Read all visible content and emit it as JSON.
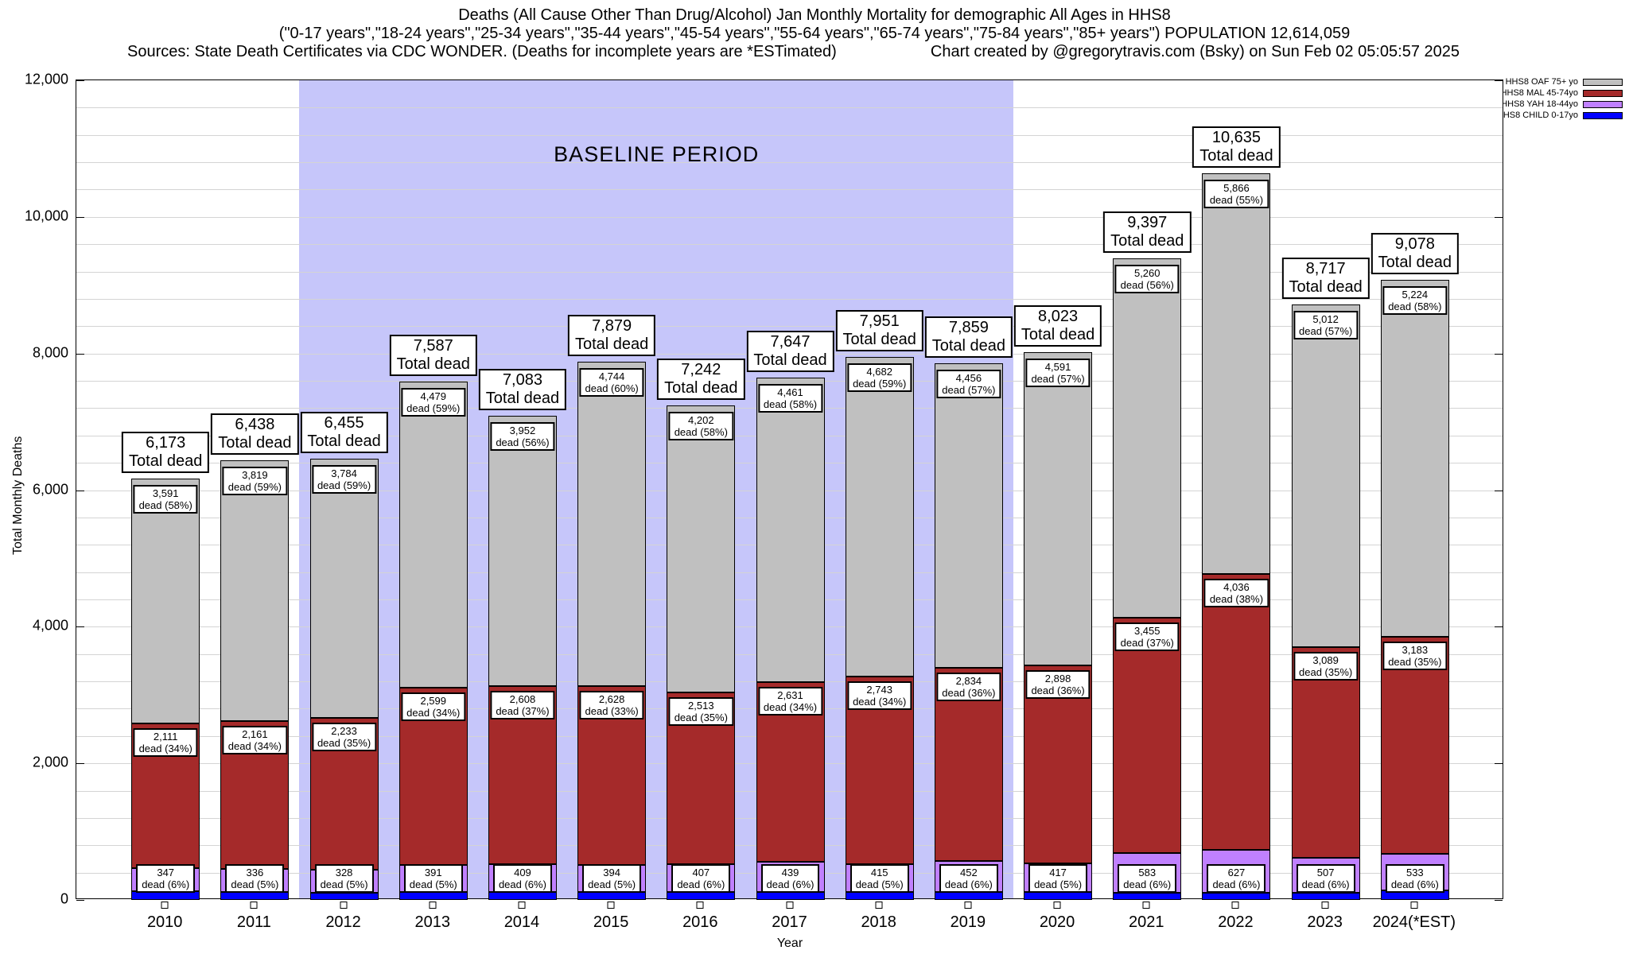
{
  "header": {
    "title_line1": "Deaths (All Cause Other Than Drug/Alcohol) Jan Monthly Mortality for demographic All Ages in HHS8",
    "title_line2": "(\"0-17 years\",\"18-24 years\",\"25-34 years\",\"35-44 years\",\"45-54 years\",\"55-64 years\",\"65-74 years\",\"75-84 years\",\"85+ years\") POPULATION 12,614,059",
    "title_line3_left": "Sources: State Death Certificates via CDC WONDER. (Deaths for incomplete years are *ESTimated)",
    "title_line3_right": "Chart created by @gregorytravis.com (Bsky) on Sun Feb 02 05:05:57 2025"
  },
  "chart_data": {
    "type": "bar",
    "stacked": true,
    "title": "Deaths (All Cause Other Than Drug/Alcohol) Jan Monthly Mortality for demographic All Ages in HHS8",
    "xlabel": "Year",
    "ylabel": "Total Monthly Deaths",
    "ylim": [
      0,
      12000
    ],
    "grid_interval": 400,
    "grid": true,
    "legend_position": "top-right-outside",
    "total_label_suffix": "Total dead",
    "baseline_period": {
      "label": "BASELINE PERIOD",
      "from": "2012",
      "to": "2019",
      "band_color": "#c6c6fa"
    },
    "yticks": [
      {
        "value": 0,
        "label": "0"
      },
      {
        "value": 2000,
        "label": "2,000"
      },
      {
        "value": 4000,
        "label": "4,000"
      },
      {
        "value": 6000,
        "label": "6,000"
      },
      {
        "value": 8000,
        "label": "8,000"
      },
      {
        "value": 10000,
        "label": "10,000"
      },
      {
        "value": 12000,
        "label": "12,000"
      }
    ],
    "categories": [
      "2010",
      "2011",
      "2012",
      "2013",
      "2014",
      "2015",
      "2016",
      "2017",
      "2018",
      "2019",
      "2020",
      "2021",
      "2022",
      "2023",
      "2024(*EST)"
    ],
    "series": [
      {
        "key": "oaf",
        "name": "HHS8 OAF 75+ yo",
        "color": "#c0c0c0"
      },
      {
        "key": "mal",
        "name": "HHS8 MAL 45-74yo",
        "color": "#a52a2a"
      },
      {
        "key": "yah",
        "name": "HHS8 YAH 18-44yo",
        "color": "#c080ff"
      },
      {
        "key": "child",
        "name": "HHS8 CHILD 0-17yo",
        "color": "#0000ff"
      }
    ],
    "stack_order_bottom_up": [
      "child",
      "yah",
      "mal",
      "oaf"
    ],
    "bars": [
      {
        "year": "2010",
        "total": 6173,
        "total_label": "6,173",
        "segments": {
          "oaf": {
            "v": 3591,
            "label": "3,591",
            "pct": "dead (58%)"
          },
          "mal": {
            "v": 2111,
            "label": "2,111",
            "pct": "dead (34%)"
          },
          "yah": {
            "v": 347,
            "label": "347",
            "pct": "dead (6%)"
          },
          "child": {
            "v": 124
          }
        }
      },
      {
        "year": "2011",
        "total": 6438,
        "total_label": "6,438",
        "segments": {
          "oaf": {
            "v": 3819,
            "label": "3,819",
            "pct": "dead (59%)"
          },
          "mal": {
            "v": 2161,
            "label": "2,161",
            "pct": "dead (34%)"
          },
          "yah": {
            "v": 336,
            "label": "336",
            "pct": "dead (5%)"
          },
          "child": {
            "v": 122
          }
        }
      },
      {
        "year": "2012",
        "total": 6455,
        "total_label": "6,455",
        "segments": {
          "oaf": {
            "v": 3784,
            "label": "3,784",
            "pct": "dead (59%)"
          },
          "mal": {
            "v": 2233,
            "label": "2,233",
            "pct": "dead (35%)"
          },
          "yah": {
            "v": 328,
            "label": "328",
            "pct": "dead (5%)"
          },
          "child": {
            "v": 110
          }
        }
      },
      {
        "year": "2013",
        "total": 7587,
        "total_label": "7,587",
        "segments": {
          "oaf": {
            "v": 4479,
            "label": "4,479",
            "pct": "dead (59%)"
          },
          "mal": {
            "v": 2599,
            "label": "2,599",
            "pct": "dead (34%)"
          },
          "yah": {
            "v": 391,
            "label": "391",
            "pct": "dead (5%)"
          },
          "child": {
            "v": 118
          }
        }
      },
      {
        "year": "2014",
        "total": 7083,
        "total_label": "7,083",
        "segments": {
          "oaf": {
            "v": 3952,
            "label": "3,952",
            "pct": "dead (56%)"
          },
          "mal": {
            "v": 2608,
            "label": "2,608",
            "pct": "dead (37%)"
          },
          "yah": {
            "v": 409,
            "label": "409",
            "pct": "dead (6%)"
          },
          "child": {
            "v": 114
          }
        }
      },
      {
        "year": "2015",
        "total": 7879,
        "total_label": "7,879",
        "segments": {
          "oaf": {
            "v": 4744,
            "label": "4,744",
            "pct": "dead (60%)"
          },
          "mal": {
            "v": 2628,
            "label": "2,628",
            "pct": "dead (33%)"
          },
          "yah": {
            "v": 394,
            "label": "394",
            "pct": "dead (5%)"
          },
          "child": {
            "v": 113
          }
        }
      },
      {
        "year": "2016",
        "total": 7242,
        "total_label": "7,242",
        "segments": {
          "oaf": {
            "v": 4202,
            "label": "4,202",
            "pct": "dead (58%)"
          },
          "mal": {
            "v": 2513,
            "label": "2,513",
            "pct": "dead (35%)"
          },
          "yah": {
            "v": 407,
            "label": "407",
            "pct": "dead (6%)"
          },
          "child": {
            "v": 120
          }
        }
      },
      {
        "year": "2017",
        "total": 7647,
        "total_label": "7,647",
        "segments": {
          "oaf": {
            "v": 4461,
            "label": "4,461",
            "pct": "dead (58%)"
          },
          "mal": {
            "v": 2631,
            "label": "2,631",
            "pct": "dead (34%)"
          },
          "yah": {
            "v": 439,
            "label": "439",
            "pct": "dead (6%)"
          },
          "child": {
            "v": 116
          }
        }
      },
      {
        "year": "2018",
        "total": 7951,
        "total_label": "7,951",
        "segments": {
          "oaf": {
            "v": 4682,
            "label": "4,682",
            "pct": "dead (59%)"
          },
          "mal": {
            "v": 2743,
            "label": "2,743",
            "pct": "dead (34%)"
          },
          "yah": {
            "v": 415,
            "label": "415",
            "pct": "dead (5%)"
          },
          "child": {
            "v": 111
          }
        }
      },
      {
        "year": "2019",
        "total": 7859,
        "total_label": "7,859",
        "segments": {
          "oaf": {
            "v": 4456,
            "label": "4,456",
            "pct": "dead (57%)"
          },
          "mal": {
            "v": 2834,
            "label": "2,834",
            "pct": "dead (36%)"
          },
          "yah": {
            "v": 452,
            "label": "452",
            "pct": "dead (6%)"
          },
          "child": {
            "v": 117
          }
        }
      },
      {
        "year": "2020",
        "total": 8023,
        "total_label": "8,023",
        "segments": {
          "oaf": {
            "v": 4591,
            "label": "4,591",
            "pct": "dead (57%)"
          },
          "mal": {
            "v": 2898,
            "label": "2,898",
            "pct": "dead (36%)"
          },
          "yah": {
            "v": 417,
            "label": "417",
            "pct": "dead (5%)"
          },
          "child": {
            "v": 117
          }
        }
      },
      {
        "year": "2021",
        "total": 9397,
        "total_label": "9,397",
        "segments": {
          "oaf": {
            "v": 5260,
            "label": "5,260",
            "pct": "dead (56%)"
          },
          "mal": {
            "v": 3455,
            "label": "3,455",
            "pct": "dead (37%)"
          },
          "yah": {
            "v": 583,
            "label": "583",
            "pct": "dead (6%)"
          },
          "child": {
            "v": 99
          }
        }
      },
      {
        "year": "2022",
        "total": 10635,
        "total_label": "10,635",
        "segments": {
          "oaf": {
            "v": 5866,
            "label": "5,866",
            "pct": "dead (55%)"
          },
          "mal": {
            "v": 4036,
            "label": "4,036",
            "pct": "dead (38%)"
          },
          "yah": {
            "v": 627,
            "label": "627",
            "pct": "dead (6%)"
          },
          "child": {
            "v": 106
          }
        }
      },
      {
        "year": "2023",
        "total": 8717,
        "total_label": "8,717",
        "segments": {
          "oaf": {
            "v": 5012,
            "label": "5,012",
            "pct": "dead (57%)"
          },
          "mal": {
            "v": 3089,
            "label": "3,089",
            "pct": "dead (35%)"
          },
          "yah": {
            "v": 507,
            "label": "507",
            "pct": "dead (6%)"
          },
          "child": {
            "v": 109
          }
        }
      },
      {
        "year": "2024(*EST)",
        "total": 9078,
        "total_label": "9,078",
        "segments": {
          "oaf": {
            "v": 5224,
            "label": "5,224",
            "pct": "dead (58%)"
          },
          "mal": {
            "v": 3183,
            "label": "3,183",
            "pct": "dead (35%)"
          },
          "yah": {
            "v": 533,
            "label": "533",
            "pct": "dead (6%)"
          },
          "child": {
            "v": 138
          }
        }
      }
    ]
  }
}
